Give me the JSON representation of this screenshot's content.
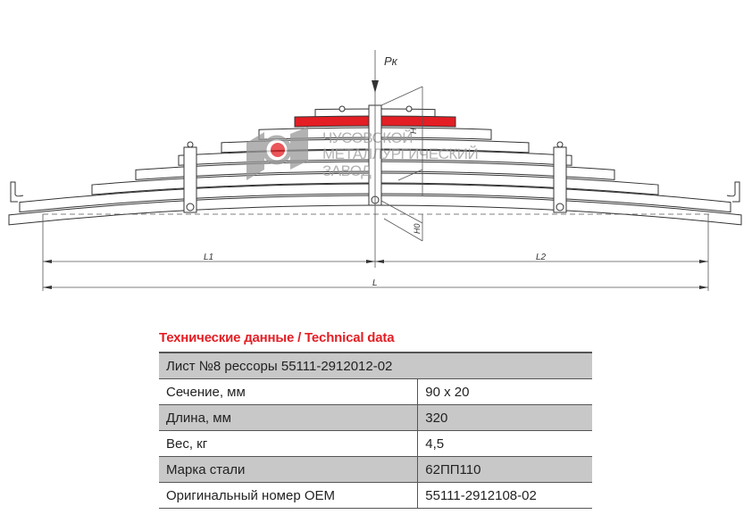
{
  "drawing": {
    "load_label": "Pк",
    "l1_label": "L1",
    "l2_label": "L2",
    "l_label": "L",
    "h_label": "H",
    "h0_label": "H0",
    "highlight_color": "#e31e24",
    "logo_text": [
      "ЧУСОВСКОЙ",
      "МЕТАЛЛУРГИЧЕСКИЙ",
      "ЗАВОД"
    ]
  },
  "table": {
    "title": "Технические данные / Technical data",
    "header": "Лист №8 рессоры 55111-2912012-02",
    "rows": [
      {
        "label": "Сечение, мм",
        "value": "90 x 20"
      },
      {
        "label": "Длина, мм",
        "value": "320"
      },
      {
        "label": "Вес, кг",
        "value": "4,5"
      },
      {
        "label": "Марка стали",
        "value": "62ПП110"
      },
      {
        "label": "Оригинальный номер OEM",
        "value": "55111-2912108-02"
      }
    ]
  }
}
